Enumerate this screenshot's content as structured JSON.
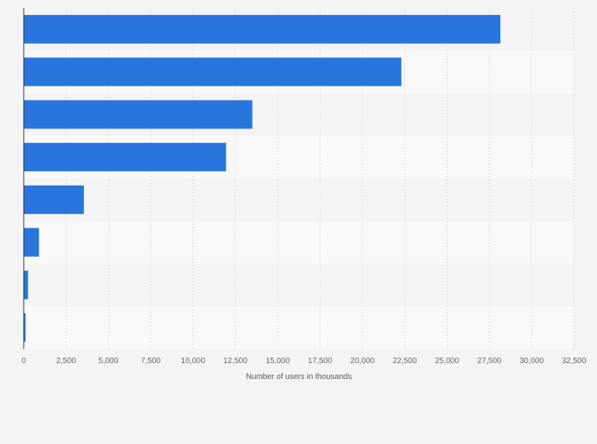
{
  "chart_data": {
    "type": "bar",
    "orientation": "horizontal",
    "categories": [
      "",
      "",
      "",
      "",
      "",
      "",
      "",
      ""
    ],
    "values": [
      28150,
      22300,
      13500,
      11950,
      3550,
      900,
      250,
      110
    ],
    "title": "",
    "xlabel": "Number of users in thousands",
    "ylabel": "",
    "xlim": [
      0,
      32500
    ],
    "xticks": [
      0,
      2500,
      5000,
      7500,
      10000,
      12500,
      15000,
      17500,
      20000,
      22500,
      25000,
      27500,
      30000,
      32500
    ],
    "tick_labels": [
      "0",
      "2,500",
      "5,000",
      "7,500",
      "10,000",
      "12,500",
      "15,000",
      "17,500",
      "20,000",
      "22,500",
      "25,000",
      "27,500",
      "30,000",
      "32,500"
    ],
    "grid": "vertical",
    "legend": "none",
    "colors": {
      "bar": "#2876dd",
      "background": "#f4f4f4",
      "band_light": "#f9f9f9",
      "band_dark": "#f4f4f4",
      "grid": "#dddddd",
      "axis": "#333333"
    }
  }
}
